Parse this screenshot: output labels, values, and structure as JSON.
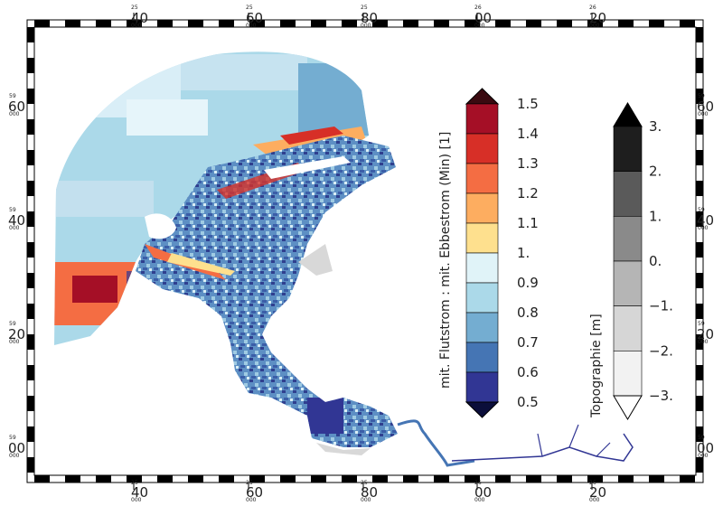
{
  "map": {
    "top_ticks": [
      {
        "deg": "25",
        "min": "40",
        "sec": "000"
      },
      {
        "deg": "25",
        "min": "60",
        "sec": "000"
      },
      {
        "deg": "25",
        "min": "80",
        "sec": "000"
      },
      {
        "deg": "26",
        "min": "00",
        "sec": "000"
      },
      {
        "deg": "26",
        "min": "20",
        "sec": "000"
      }
    ],
    "side_ticks": [
      {
        "deg": "59",
        "min": "60",
        "sec": "000"
      },
      {
        "deg": "59",
        "min": "40",
        "sec": "000"
      },
      {
        "deg": "59",
        "min": "20",
        "sec": "000"
      },
      {
        "deg": "59",
        "min": "00",
        "sec": "000"
      }
    ]
  },
  "ratio_colorbar": {
    "title": "mit. Flutstrom : mit. Ebbestrom (Min) [1]",
    "labels": [
      "1.5",
      "1.4",
      "1.3",
      "1.2",
      "1.1",
      "1.",
      "0.9",
      "0.8",
      "0.7",
      "0.6",
      "0.5"
    ],
    "colors": [
      "#a50f26",
      "#d72f27",
      "#f46d43",
      "#fdad60",
      "#fee08e",
      "#e0f3f8",
      "#abd9e9",
      "#74add1",
      "#4575b4",
      "#313694"
    ],
    "over_color": "#3a0a10",
    "under_color": "#0b0e3a"
  },
  "topo_colorbar": {
    "title": "Topographie [m]",
    "labels": [
      "3.",
      "2.",
      "1.",
      "0.",
      "−1.",
      "−2.",
      "−3."
    ],
    "colors": [
      "#1e1e1e",
      "#5a5a5a",
      "#8a8a8a",
      "#b5b5b5",
      "#d6d6d6",
      "#f2f2f2"
    ],
    "over_color": "#000000",
    "under_color": "#ffffff"
  }
}
